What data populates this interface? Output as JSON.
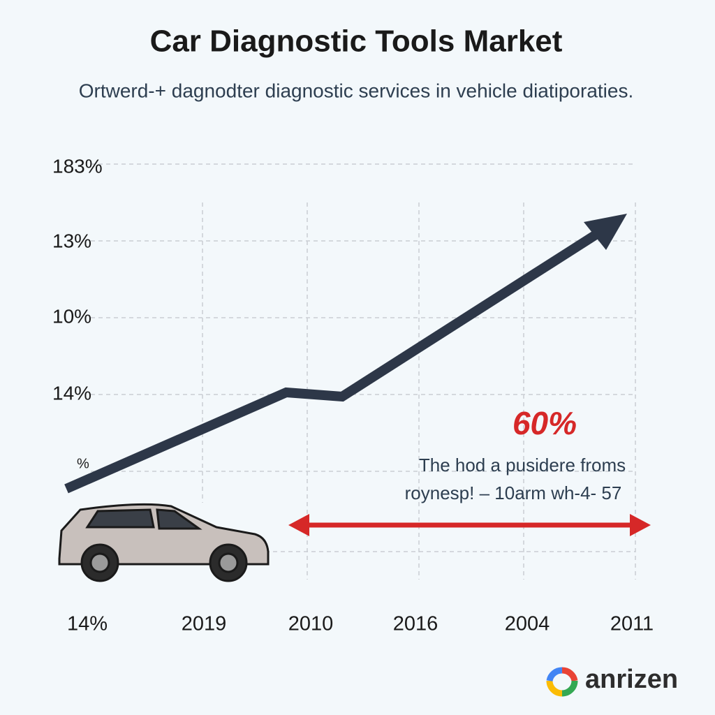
{
  "header": {
    "title": "Car Diagnostic Tools Market",
    "subtitle": "Ortwerd-+ dagnodter diagnostic services in vehicle diatiporaties."
  },
  "axis": {
    "y_labels": [
      "183%",
      "13%",
      "10%",
      "14%",
      "%"
    ],
    "x_labels": [
      "14%",
      "2019",
      "2010",
      "2016",
      "2004",
      "2011"
    ]
  },
  "annotation": {
    "value": "60%",
    "lines": [
      "The hod a pusidere froms",
      "roynesp! – 10arm wh-4- 57"
    ]
  },
  "logo": {
    "text": "anrizen"
  }
}
